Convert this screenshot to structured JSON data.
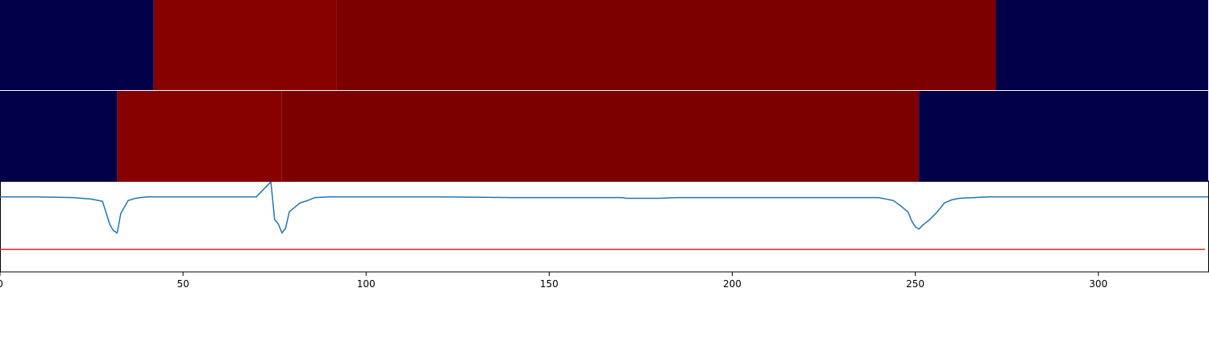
{
  "chart_data": {
    "type": "heatmap",
    "xlim": [
      0,
      330
    ],
    "x_ticks": [
      0,
      50,
      100,
      150,
      200,
      250,
      300
    ],
    "x_tick_labels": [
      "0",
      "50",
      "100",
      "150",
      "200",
      "250",
      "300"
    ],
    "title": "",
    "xlabel": "",
    "ylabel": "",
    "grid": false,
    "colors": {
      "background_band": "#000048",
      "segment_light": "#870000",
      "segment_dark": "#7c0000",
      "signal_line": "#1f77b4",
      "threshold_line": "#d62728"
    },
    "bands": [
      {
        "segments": [
          {
            "x0": 0,
            "x1": 42,
            "color": "#000048"
          },
          {
            "x0": 42,
            "x1": 92,
            "color": "#870000"
          },
          {
            "x0": 92,
            "x1": 272,
            "color": "#7c0000"
          },
          {
            "x0": 272,
            "x1": 330,
            "color": "#000048"
          }
        ]
      },
      {
        "segments": [
          {
            "x0": 0,
            "x1": 32,
            "color": "#000048"
          },
          {
            "x0": 32,
            "x1": 77,
            "color": "#870000"
          },
          {
            "x0": 77,
            "x1": 251,
            "color": "#7c0000"
          },
          {
            "x0": 251,
            "x1": 330,
            "color": "#000048"
          }
        ]
      }
    ],
    "line_panel": {
      "ylim": [
        -1.0,
        0.2
      ],
      "threshold_y": -0.7,
      "signal": {
        "x": [
          0,
          10,
          20,
          25,
          28,
          30,
          31,
          32,
          33,
          35,
          37,
          40,
          45,
          70,
          74,
          75,
          76,
          77,
          78,
          79,
          80,
          82,
          84,
          86,
          90,
          100,
          120,
          140,
          160,
          170,
          171,
          175,
          180,
          185,
          190,
          200,
          210,
          230,
          240,
          244,
          246,
          248,
          249,
          250,
          251,
          252,
          254,
          256,
          258,
          260,
          262,
          270,
          300,
          330
        ],
        "y": [
          0.0,
          0.0,
          -0.01,
          -0.03,
          -0.06,
          -0.37,
          -0.45,
          -0.48,
          -0.22,
          -0.05,
          -0.02,
          0.0,
          0.0,
          0.0,
          0.2,
          -0.3,
          -0.36,
          -0.48,
          -0.42,
          -0.2,
          -0.16,
          -0.08,
          -0.05,
          -0.01,
          0.0,
          0.0,
          0.0,
          -0.01,
          -0.01,
          -0.01,
          -0.02,
          -0.02,
          -0.02,
          -0.01,
          -0.01,
          -0.01,
          -0.01,
          -0.01,
          -0.01,
          -0.05,
          -0.12,
          -0.2,
          -0.32,
          -0.4,
          -0.43,
          -0.38,
          -0.3,
          -0.2,
          -0.08,
          -0.04,
          -0.02,
          0.0,
          0.0,
          0.0
        ]
      }
    }
  }
}
